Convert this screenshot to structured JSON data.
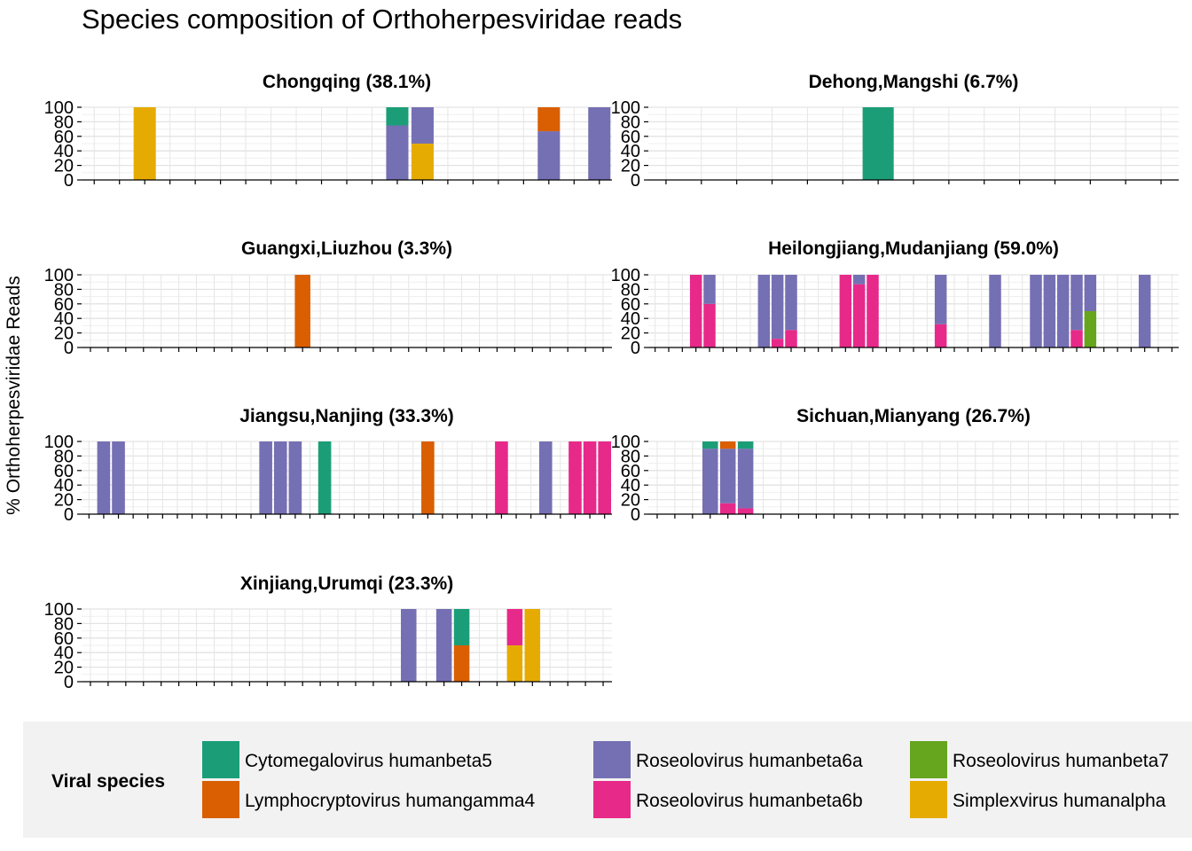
{
  "chart_data": {
    "type": "bar",
    "stacked": true,
    "title": "Species composition of Orthoherpesviridae reads",
    "ylabel": "% Orthoherpesviridae Reads",
    "ylim": [
      0,
      100
    ],
    "yticks": [
      0,
      20,
      40,
      60,
      80,
      100
    ],
    "grid": true,
    "legend": {
      "title": "Viral species",
      "position": "bottom",
      "entries": [
        {
          "name": "Cytomegalovirus humanbeta5",
          "color": "#1b9e77"
        },
        {
          "name": "Lymphocryptovirus humangamma4",
          "color": "#d95f02"
        },
        {
          "name": "Roseolovirus humanbeta6a",
          "color": "#7570b3"
        },
        {
          "name": "Roseolovirus humanbeta6b",
          "color": "#e7298a"
        },
        {
          "name": "Roseolovirus humanbeta7",
          "color": "#66a61e"
        },
        {
          "name": "Simplexvirus humanalpha",
          "color": "#e6ab02"
        }
      ]
    },
    "panels": [
      {
        "title": "Chongqing (38.1%)",
        "n_samples": 21,
        "bars": [
          {
            "index": 2,
            "segments": [
              {
                "species": "Simplexvirus humanalpha",
                "value": 100
              }
            ]
          },
          {
            "index": 12,
            "segments": [
              {
                "species": "Roseolovirus humanbeta6a",
                "value": 75
              },
              {
                "species": "Cytomegalovirus humanbeta5",
                "value": 25
              }
            ]
          },
          {
            "index": 13,
            "segments": [
              {
                "species": "Simplexvirus humanalpha",
                "value": 50
              },
              {
                "species": "Roseolovirus humanbeta6a",
                "value": 50
              }
            ]
          },
          {
            "index": 18,
            "segments": [
              {
                "species": "Roseolovirus humanbeta6a",
                "value": 67
              },
              {
                "species": "Lymphocryptovirus humangamma4",
                "value": 33
              }
            ]
          },
          {
            "index": 20,
            "segments": [
              {
                "species": "Roseolovirus humanbeta6a",
                "value": 100
              }
            ]
          }
        ]
      },
      {
        "title": "Dehong,Mangshi (6.7%)",
        "n_samples": 15,
        "bars": [
          {
            "index": 6,
            "segments": [
              {
                "species": "Cytomegalovirus humanbeta5",
                "value": 100
              }
            ]
          }
        ]
      },
      {
        "title": "Guangxi,Liuzhou (3.3%)",
        "n_samples": 30,
        "bars": [
          {
            "index": 12,
            "segments": [
              {
                "species": "Lymphocryptovirus humangamma4",
                "value": 100
              }
            ]
          }
        ]
      },
      {
        "title": "Heilongjiang,Mudanjiang (59.0%)",
        "n_samples": 39,
        "bars": [
          {
            "index": 3,
            "segments": [
              {
                "species": "Roseolovirus humanbeta6b",
                "value": 100
              }
            ]
          },
          {
            "index": 4,
            "segments": [
              {
                "species": "Roseolovirus humanbeta6b",
                "value": 60
              },
              {
                "species": "Roseolovirus humanbeta6a",
                "value": 40
              }
            ]
          },
          {
            "index": 8,
            "segments": [
              {
                "species": "Roseolovirus humanbeta6a",
                "value": 100
              }
            ]
          },
          {
            "index": 9,
            "segments": [
              {
                "species": "Roseolovirus humanbeta6b",
                "value": 12
              },
              {
                "species": "Roseolovirus humanbeta6a",
                "value": 88
              }
            ]
          },
          {
            "index": 10,
            "segments": [
              {
                "species": "Roseolovirus humanbeta6b",
                "value": 24
              },
              {
                "species": "Roseolovirus humanbeta6a",
                "value": 76
              }
            ]
          },
          {
            "index": 14,
            "segments": [
              {
                "species": "Roseolovirus humanbeta6b",
                "value": 100
              }
            ]
          },
          {
            "index": 15,
            "segments": [
              {
                "species": "Roseolovirus humanbeta6b",
                "value": 87
              },
              {
                "species": "Roseolovirus humanbeta6a",
                "value": 13
              }
            ]
          },
          {
            "index": 16,
            "segments": [
              {
                "species": "Roseolovirus humanbeta6b",
                "value": 100
              }
            ]
          },
          {
            "index": 21,
            "segments": [
              {
                "species": "Roseolovirus humanbeta6b",
                "value": 32
              },
              {
                "species": "Roseolovirus humanbeta6a",
                "value": 68
              }
            ]
          },
          {
            "index": 25,
            "segments": [
              {
                "species": "Roseolovirus humanbeta6a",
                "value": 100
              }
            ]
          },
          {
            "index": 28,
            "segments": [
              {
                "species": "Roseolovirus humanbeta6a",
                "value": 100
              }
            ]
          },
          {
            "index": 29,
            "segments": [
              {
                "species": "Roseolovirus humanbeta6a",
                "value": 100
              }
            ]
          },
          {
            "index": 30,
            "segments": [
              {
                "species": "Roseolovirus humanbeta6a",
                "value": 100
              }
            ]
          },
          {
            "index": 31,
            "segments": [
              {
                "species": "Roseolovirus humanbeta6b",
                "value": 24
              },
              {
                "species": "Roseolovirus humanbeta6a",
                "value": 76
              }
            ]
          },
          {
            "index": 32,
            "segments": [
              {
                "species": "Roseolovirus humanbeta7",
                "value": 50
              },
              {
                "species": "Roseolovirus humanbeta6a",
                "value": 50
              }
            ]
          },
          {
            "index": 36,
            "segments": [
              {
                "species": "Roseolovirus humanbeta6a",
                "value": 100
              }
            ]
          }
        ]
      },
      {
        "title": "Jiangsu,Nanjing (33.3%)",
        "n_samples": 36,
        "bars": [
          {
            "index": 1,
            "segments": [
              {
                "species": "Roseolovirus humanbeta6a",
                "value": 100
              }
            ]
          },
          {
            "index": 2,
            "segments": [
              {
                "species": "Roseolovirus humanbeta6a",
                "value": 100
              }
            ]
          },
          {
            "index": 12,
            "segments": [
              {
                "species": "Roseolovirus humanbeta6a",
                "value": 100
              }
            ]
          },
          {
            "index": 13,
            "segments": [
              {
                "species": "Roseolovirus humanbeta6a",
                "value": 100
              }
            ]
          },
          {
            "index": 14,
            "segments": [
              {
                "species": "Roseolovirus humanbeta6a",
                "value": 100
              }
            ]
          },
          {
            "index": 16,
            "segments": [
              {
                "species": "Cytomegalovirus humanbeta5",
                "value": 100
              }
            ]
          },
          {
            "index": 23,
            "segments": [
              {
                "species": "Lymphocryptovirus humangamma4",
                "value": 100
              }
            ]
          },
          {
            "index": 28,
            "segments": [
              {
                "species": "Roseolovirus humanbeta6b",
                "value": 100
              }
            ]
          },
          {
            "index": 31,
            "segments": [
              {
                "species": "Roseolovirus humanbeta6a",
                "value": 100
              }
            ]
          },
          {
            "index": 33,
            "segments": [
              {
                "species": "Roseolovirus humanbeta6b",
                "value": 100
              }
            ]
          },
          {
            "index": 34,
            "segments": [
              {
                "species": "Roseolovirus humanbeta6b",
                "value": 100
              }
            ]
          },
          {
            "index": 35,
            "segments": [
              {
                "species": "Roseolovirus humanbeta6b",
                "value": 100
              }
            ]
          }
        ]
      },
      {
        "title": "Sichuan,Mianyang (26.7%)",
        "n_samples": 30,
        "bars": [
          {
            "index": 3,
            "segments": [
              {
                "species": "Roseolovirus humanbeta6a",
                "value": 90
              },
              {
                "species": "Cytomegalovirus humanbeta5",
                "value": 10
              }
            ]
          },
          {
            "index": 4,
            "segments": [
              {
                "species": "Roseolovirus humanbeta6b",
                "value": 15
              },
              {
                "species": "Roseolovirus humanbeta6a",
                "value": 75
              },
              {
                "species": "Lymphocryptovirus humangamma4",
                "value": 10
              }
            ]
          },
          {
            "index": 5,
            "segments": [
              {
                "species": "Roseolovirus humanbeta6b",
                "value": 8
              },
              {
                "species": "Roseolovirus humanbeta6a",
                "value": 82
              },
              {
                "species": "Cytomegalovirus humanbeta5",
                "value": 10
              }
            ]
          }
        ]
      },
      {
        "title": "Xinjiang,Urumqi (23.3%)",
        "n_samples": 30,
        "bars": [
          {
            "index": 18,
            "segments": [
              {
                "species": "Roseolovirus humanbeta6a",
                "value": 100
              }
            ]
          },
          {
            "index": 20,
            "segments": [
              {
                "species": "Roseolovirus humanbeta6a",
                "value": 100
              }
            ]
          },
          {
            "index": 21,
            "segments": [
              {
                "species": "Lymphocryptovirus humangamma4",
                "value": 50
              },
              {
                "species": "Cytomegalovirus humanbeta5",
                "value": 50
              }
            ]
          },
          {
            "index": 24,
            "segments": [
              {
                "species": "Simplexvirus humanalpha",
                "value": 50
              },
              {
                "species": "Roseolovirus humanbeta6b",
                "value": 50
              }
            ]
          },
          {
            "index": 25,
            "segments": [
              {
                "species": "Simplexvirus humanalpha",
                "value": 100
              }
            ]
          }
        ]
      }
    ]
  }
}
